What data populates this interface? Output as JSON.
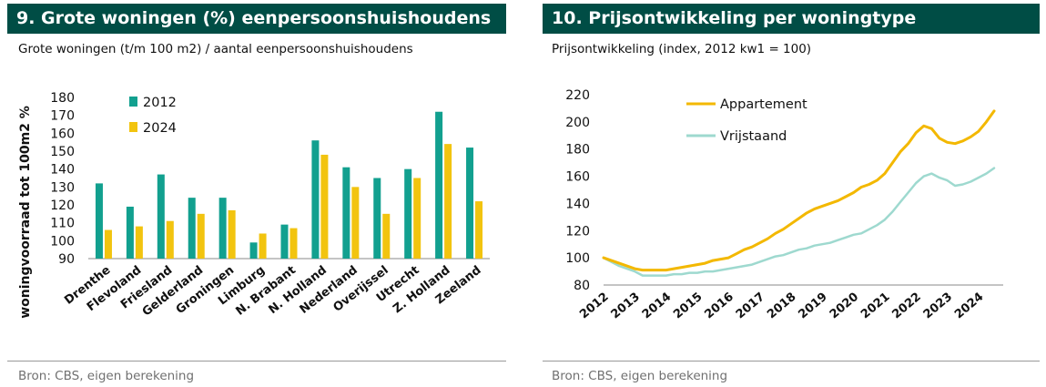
{
  "left": {
    "header": "9. Grote woningen (%) eenpersoonshuishoudens",
    "subtitle": "Grote woningen (t/m 100 m2) / aantal eenpersoonshuishoudens",
    "source": "Bron: CBS, eigen berekening"
  },
  "right": {
    "header": "10. Prijsontwikkeling per woningtype",
    "subtitle": "Prijsontwikkeling (index, 2012 kw1 = 100)",
    "source": "Bron: CBS, eigen berekening"
  },
  "colors": {
    "teal": "#12a08f",
    "yellow": "#f2c40f",
    "gold_line": "#f3b800",
    "light_teal_line": "#9ed9cf",
    "header_bg": "#004d45"
  },
  "chart_data": [
    {
      "type": "bar",
      "title": "9. Grote woningen (%) eenpersoonshuishoudens",
      "subtitle": "Grote woningen (t/m 100 m2) / aantal eenpersoonshuishoudens",
      "ylabel": "woningvoorraad tot 100m2  %",
      "ylim": [
        90,
        180
      ],
      "yticks": [
        90,
        100,
        110,
        120,
        130,
        140,
        150,
        160,
        170,
        180
      ],
      "categories": [
        "Drenthe",
        "Flevoland",
        "Friesland",
        "Gelderland",
        "Groningen",
        "Limburg",
        "N. Brabant",
        "N. Holland",
        "Nederland",
        "Overijssel",
        "Utrecht",
        "Z. Holland",
        "Zeeland"
      ],
      "series": [
        {
          "name": "2012",
          "values": [
            132,
            119,
            137,
            124,
            124,
            99,
            109,
            156,
            141,
            135,
            140,
            172,
            152
          ]
        },
        {
          "name": "2024",
          "values": [
            106,
            108,
            111,
            115,
            117,
            104,
            107,
            148,
            130,
            115,
            135,
            154,
            122
          ]
        }
      ],
      "legend": "top-left",
      "grid": false
    },
    {
      "type": "line",
      "title": "10. Prijsontwikkeling per woningtype",
      "subtitle": "Prijsontwikkeling (index, 2012 kw1 = 100)",
      "ylim": [
        80,
        220
      ],
      "yticks": [
        80,
        100,
        120,
        140,
        160,
        180,
        200,
        220
      ],
      "xticks": [
        "2012",
        "2013",
        "2014",
        "2015",
        "2016",
        "2017",
        "2018",
        "2019",
        "2020",
        "2021",
        "2022",
        "2023",
        "2024"
      ],
      "x": [
        2012.0,
        2012.25,
        2012.5,
        2012.75,
        2013.0,
        2013.25,
        2013.5,
        2013.75,
        2014.0,
        2014.25,
        2014.5,
        2014.75,
        2015.0,
        2015.25,
        2015.5,
        2015.75,
        2016.0,
        2016.25,
        2016.5,
        2016.75,
        2017.0,
        2017.25,
        2017.5,
        2017.75,
        2018.0,
        2018.25,
        2018.5,
        2018.75,
        2019.0,
        2019.25,
        2019.5,
        2019.75,
        2020.0,
        2020.25,
        2020.5,
        2020.75,
        2021.0,
        2021.25,
        2021.5,
        2021.75,
        2022.0,
        2022.25,
        2022.5,
        2022.75,
        2023.0,
        2023.25,
        2023.5,
        2023.75,
        2024.0,
        2024.25,
        2024.5
      ],
      "series": [
        {
          "name": "Appartement",
          "values": [
            100,
            98,
            96,
            94,
            92,
            91,
            91,
            91,
            91,
            92,
            93,
            94,
            95,
            96,
            98,
            99,
            100,
            103,
            106,
            108,
            111,
            114,
            118,
            121,
            125,
            129,
            133,
            136,
            138,
            140,
            142,
            145,
            148,
            152,
            154,
            157,
            162,
            170,
            178,
            184,
            192,
            197,
            195,
            188,
            185,
            184,
            186,
            189,
            193,
            200,
            208
          ]
        },
        {
          "name": "Vrijstaand",
          "values": [
            100,
            97,
            94,
            92,
            90,
            87,
            87,
            87,
            87,
            88,
            88,
            89,
            89,
            90,
            90,
            91,
            92,
            93,
            94,
            95,
            97,
            99,
            101,
            102,
            104,
            106,
            107,
            109,
            110,
            111,
            113,
            115,
            117,
            118,
            121,
            124,
            128,
            134,
            141,
            148,
            155,
            160,
            162,
            159,
            157,
            153,
            154,
            156,
            159,
            162,
            166
          ]
        }
      ],
      "legend": "top-left",
      "grid": false
    }
  ]
}
